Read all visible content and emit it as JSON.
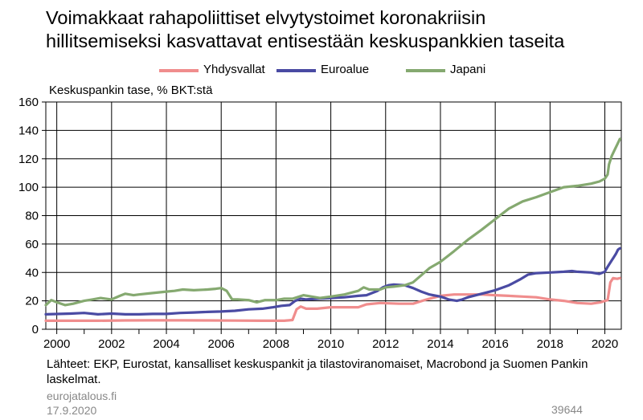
{
  "title_lines": [
    "Voimakkaat rahapoliittiset elvytystoimet koronakriisin",
    "hillitsemiseksi kasvattavat entisestään keskuspankkien taseita"
  ],
  "footer": {
    "source": "Lähteet: EKP, Eurostat, kansalliset keskuspankit ja tilastoviranomaiset, Macrobond ja Suomen Pankin laskelmat.",
    "site": "eurojatalous.fi",
    "date": "17.9.2020",
    "chart_id": "39644"
  },
  "chart_data": {
    "type": "line",
    "title": "Voimakkaat rahapoliittiset elvytystoimet koronakriisin hillitsemiseksi kasvattavat entisestään keskuspankkien taseita",
    "xlabel": "",
    "ylabel": "Keskuspankin tase, % BKT:stä",
    "xlim": [
      1999.6,
      2020.6
    ],
    "ylim": [
      0,
      160
    ],
    "x_ticks": [
      2000,
      2002,
      2004,
      2006,
      2008,
      2010,
      2012,
      2014,
      2016,
      2018,
      2020
    ],
    "y_ticks": [
      0,
      20,
      40,
      60,
      80,
      100,
      120,
      140,
      160
    ],
    "grid": true,
    "legend": "top-center",
    "series": [
      {
        "name": "Yhdysvallat",
        "color": "#f08d8d",
        "points": [
          [
            1999.6,
            6
          ],
          [
            2000.5,
            6
          ],
          [
            2001.5,
            6
          ],
          [
            2002.5,
            6.2
          ],
          [
            2003.5,
            6.3
          ],
          [
            2004.5,
            6.3
          ],
          [
            2005.5,
            6.2
          ],
          [
            2006.5,
            6.1
          ],
          [
            2007.5,
            6
          ],
          [
            2008.3,
            6
          ],
          [
            2008.6,
            6.5
          ],
          [
            2008.75,
            14
          ],
          [
            2008.9,
            16
          ],
          [
            2009.1,
            14.5
          ],
          [
            2009.5,
            14.5
          ],
          [
            2010,
            15.5
          ],
          [
            2010.5,
            15.5
          ],
          [
            2011,
            15.5
          ],
          [
            2011.3,
            17.5
          ],
          [
            2011.8,
            18.5
          ],
          [
            2012.5,
            18
          ],
          [
            2013,
            18
          ],
          [
            2013.5,
            21
          ],
          [
            2014,
            23.5
          ],
          [
            2014.5,
            24.5
          ],
          [
            2015,
            24.5
          ],
          [
            2015.5,
            24.5
          ],
          [
            2016,
            24
          ],
          [
            2016.5,
            23.5
          ],
          [
            2017,
            23
          ],
          [
            2017.5,
            22.5
          ],
          [
            2018,
            21
          ],
          [
            2018.5,
            20
          ],
          [
            2019,
            18.5
          ],
          [
            2019.5,
            18
          ],
          [
            2019.85,
            19
          ],
          [
            2020.1,
            20.5
          ],
          [
            2020.2,
            33
          ],
          [
            2020.3,
            36
          ],
          [
            2020.45,
            35.5
          ],
          [
            2020.55,
            36
          ]
        ]
      },
      {
        "name": "Euroalue",
        "color": "#4a4ba3",
        "points": [
          [
            1999.6,
            10.5
          ],
          [
            2000.5,
            11
          ],
          [
            2001,
            11.5
          ],
          [
            2001.5,
            10.5
          ],
          [
            2002,
            11
          ],
          [
            2002.5,
            10.5
          ],
          [
            2003,
            10.5
          ],
          [
            2003.5,
            10.8
          ],
          [
            2004,
            10.8
          ],
          [
            2004.5,
            11.5
          ],
          [
            2005,
            11.8
          ],
          [
            2005.5,
            12.2
          ],
          [
            2006,
            12.5
          ],
          [
            2006.5,
            13
          ],
          [
            2007,
            14
          ],
          [
            2007.5,
            14.5
          ],
          [
            2007.9,
            15.5
          ],
          [
            2008.2,
            16.5
          ],
          [
            2008.5,
            17
          ],
          [
            2008.7,
            20
          ],
          [
            2008.9,
            21.5
          ],
          [
            2009.1,
            21
          ],
          [
            2009.5,
            21.5
          ],
          [
            2010,
            22
          ],
          [
            2010.5,
            22.5
          ],
          [
            2011,
            23.5
          ],
          [
            2011.3,
            24
          ],
          [
            2011.7,
            27
          ],
          [
            2011.9,
            29.5
          ],
          [
            2012.1,
            31
          ],
          [
            2012.3,
            31.5
          ],
          [
            2012.7,
            31
          ],
          [
            2013,
            29
          ],
          [
            2013.3,
            26.5
          ],
          [
            2013.6,
            24.5
          ],
          [
            2014,
            23
          ],
          [
            2014.3,
            21
          ],
          [
            2014.6,
            20
          ],
          [
            2014.8,
            21
          ],
          [
            2015,
            22.5
          ],
          [
            2015.5,
            25
          ],
          [
            2016,
            27.5
          ],
          [
            2016.5,
            31
          ],
          [
            2016.9,
            35
          ],
          [
            2017.2,
            38.5
          ],
          [
            2017.5,
            39.5
          ],
          [
            2018,
            40
          ],
          [
            2018.5,
            40.5
          ],
          [
            2018.8,
            41
          ],
          [
            2019,
            40.5
          ],
          [
            2019.5,
            40
          ],
          [
            2019.8,
            39
          ],
          [
            2020,
            40.5
          ],
          [
            2020.1,
            44
          ],
          [
            2020.2,
            47
          ],
          [
            2020.3,
            50
          ],
          [
            2020.4,
            53
          ],
          [
            2020.48,
            56
          ],
          [
            2020.55,
            57
          ]
        ]
      },
      {
        "name": "Japani",
        "color": "#85a970",
        "points": [
          [
            1999.6,
            17
          ],
          [
            1999.8,
            20.5
          ],
          [
            2000,
            19
          ],
          [
            2000.3,
            17
          ],
          [
            2000.6,
            18
          ],
          [
            2001,
            20
          ],
          [
            2001.3,
            21
          ],
          [
            2001.6,
            22
          ],
          [
            2002,
            21
          ],
          [
            2002.3,
            23.5
          ],
          [
            2002.5,
            25
          ],
          [
            2002.8,
            24
          ],
          [
            2003,
            24.5
          ],
          [
            2003.5,
            25.5
          ],
          [
            2004,
            26.5
          ],
          [
            2004.3,
            27
          ],
          [
            2004.6,
            28
          ],
          [
            2005,
            27.5
          ],
          [
            2005.5,
            28
          ],
          [
            2005.8,
            28.5
          ],
          [
            2006,
            29
          ],
          [
            2006.2,
            27
          ],
          [
            2006.4,
            21
          ],
          [
            2006.6,
            21
          ],
          [
            2007,
            20.5
          ],
          [
            2007.3,
            19
          ],
          [
            2007.6,
            20.5
          ],
          [
            2008,
            20.5
          ],
          [
            2008.3,
            21.5
          ],
          [
            2008.6,
            21.5
          ],
          [
            2009,
            24
          ],
          [
            2009.3,
            23
          ],
          [
            2009.6,
            22
          ],
          [
            2010,
            23
          ],
          [
            2010.5,
            24.5
          ],
          [
            2011,
            27
          ],
          [
            2011.2,
            29.5
          ],
          [
            2011.4,
            28
          ],
          [
            2011.8,
            28
          ],
          [
            2012,
            29.5
          ],
          [
            2012.3,
            30
          ],
          [
            2012.7,
            31
          ],
          [
            2013,
            33
          ],
          [
            2013.3,
            38
          ],
          [
            2013.6,
            43
          ],
          [
            2014,
            47.5
          ],
          [
            2014.5,
            55
          ],
          [
            2015,
            63
          ],
          [
            2015.5,
            70
          ],
          [
            2016,
            77.5
          ],
          [
            2016.5,
            85
          ],
          [
            2017,
            90
          ],
          [
            2017.5,
            93
          ],
          [
            2018,
            96.5
          ],
          [
            2018.5,
            100
          ],
          [
            2019,
            101
          ],
          [
            2019.5,
            102.5
          ],
          [
            2019.8,
            104
          ],
          [
            2020,
            106
          ],
          [
            2020.1,
            109
          ],
          [
            2020.15,
            116
          ],
          [
            2020.25,
            122
          ],
          [
            2020.35,
            126
          ],
          [
            2020.45,
            130
          ],
          [
            2020.55,
            134
          ]
        ]
      }
    ]
  }
}
